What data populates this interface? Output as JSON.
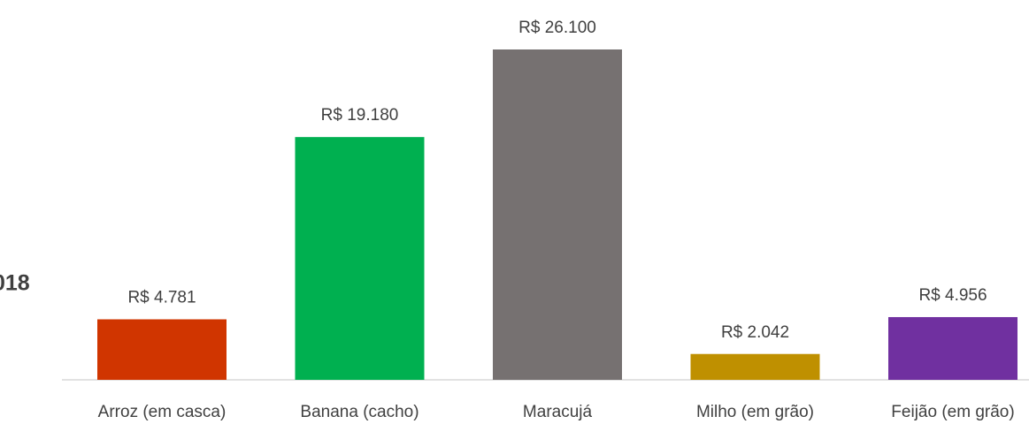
{
  "chart_data": {
    "type": "bar",
    "title": "018",
    "categories": [
      "Arroz (em casca)",
      "Banana (cacho)",
      "Maracujá",
      "Milho (em grão)",
      "Feijão (em grão)"
    ],
    "values": [
      4781,
      19180,
      26100,
      2042,
      4956
    ],
    "value_labels": [
      "R$ 4.781",
      "R$ 19.180",
      "R$ 26.100",
      "R$ 2.042",
      "R$ 4.956"
    ],
    "colors": [
      "#d03500",
      "#00b050",
      "#767171",
      "#bf9000",
      "#7030a0"
    ]
  }
}
